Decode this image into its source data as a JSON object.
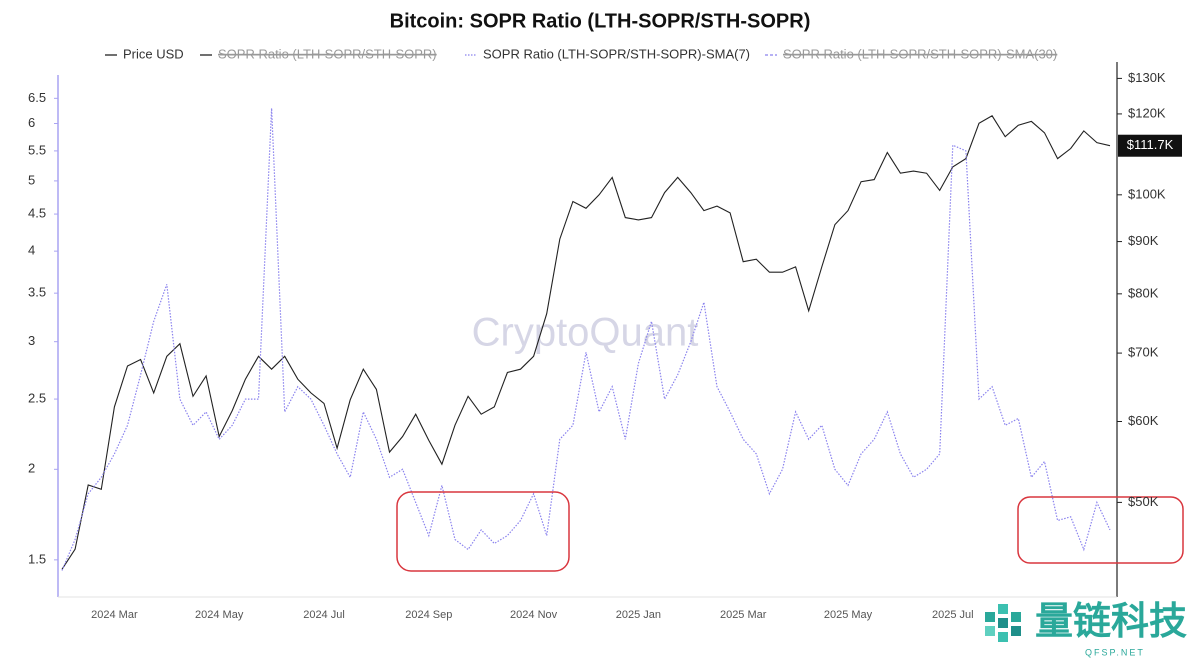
{
  "chart_data": {
    "type": "line",
    "title": "Bitcoin: SOPR Ratio (LTH-SOPR/STH-SOPR)",
    "watermark": "CryptoQuant",
    "last_value_label": "$111.7K",
    "logo_text": "量链科技",
    "logo_subtext": "QFSP.NET",
    "log_scale_y": true,
    "log_scale_y2": true,
    "legend": "top",
    "categories": [
      null,
      null,
      null,
      null,
      "2024 Mar",
      null,
      null,
      null,
      null,
      null,
      null,
      null,
      "2024 May",
      null,
      null,
      null,
      null,
      null,
      null,
      null,
      "2024 Jul",
      null,
      null,
      null,
      null,
      null,
      null,
      null,
      "2024 Sep",
      null,
      null,
      null,
      null,
      null,
      null,
      null,
      "2024 Nov",
      null,
      null,
      null,
      null,
      null,
      null,
      null,
      "2025 Jan",
      null,
      null,
      null,
      null,
      null,
      null,
      null,
      "2025 Mar",
      null,
      null,
      null,
      null,
      null,
      null,
      null,
      "2025 May",
      null,
      null,
      null,
      null,
      null,
      null,
      null,
      "2025 Jul",
      null,
      null,
      null,
      null,
      null,
      null,
      null,
      null,
      null,
      null,
      null,
      null
    ],
    "series": [
      {
        "name": "Price USD",
        "color": "#222222",
        "axis": "y2",
        "style": "solid",
        "values": [
          43000,
          45000,
          52000,
          51500,
          62000,
          68000,
          69000,
          64000,
          69500,
          71500,
          63500,
          66500,
          58000,
          61500,
          66000,
          69500,
          67500,
          69500,
          66000,
          64000,
          62500,
          56500,
          63000,
          67500,
          64500,
          56000,
          58000,
          61000,
          57500,
          54500,
          59500,
          63500,
          61000,
          62000,
          67000,
          67500,
          69500,
          76500,
          90500,
          98500,
          97000,
          100000,
          104000,
          95000,
          94500,
          95000,
          100500,
          104000,
          100500,
          96500,
          97500,
          96000,
          86000,
          86500,
          84000,
          84000,
          85000,
          77000,
          85000,
          93500,
          96500,
          103000,
          103500,
          110000,
          105000,
          105500,
          105000,
          101000,
          106500,
          108500,
          117500,
          119500,
          114000,
          117000,
          118000,
          115000,
          108500,
          111000,
          115500,
          112500,
          111700
        ]
      },
      {
        "name": "SOPR Ratio (LTH-SOPR/STH-SOPR)",
        "color": "#222222",
        "style": "solid",
        "hidden": true
      },
      {
        "name": "SOPR Ratio (LTH-SOPR/STH-SOPR)-SMA(7)",
        "color": "#8a82ee",
        "style": "dotted",
        "values": [
          1.45,
          1.6,
          1.85,
          1.95,
          2.1,
          2.3,
          2.7,
          3.2,
          3.6,
          2.5,
          2.3,
          2.4,
          2.2,
          2.3,
          2.5,
          2.5,
          6.3,
          2.4,
          2.6,
          2.5,
          2.3,
          2.1,
          1.95,
          2.4,
          2.2,
          1.95,
          2.0,
          1.8,
          1.62,
          1.9,
          1.6,
          1.55,
          1.65,
          1.58,
          1.62,
          1.7,
          1.85,
          1.62,
          2.2,
          2.3,
          2.9,
          2.4,
          2.6,
          2.2,
          2.8,
          3.2,
          2.5,
          2.7,
          3.0,
          3.4,
          2.6,
          2.4,
          2.2,
          2.1,
          1.85,
          2.0,
          2.4,
          2.2,
          2.3,
          2.0,
          1.9,
          2.1,
          2.2,
          2.4,
          2.1,
          1.95,
          2.0,
          2.1,
          5.6,
          5.5,
          2.5,
          2.6,
          2.3,
          2.35,
          1.95,
          2.05,
          1.7,
          1.72,
          1.55,
          1.8,
          1.65
        ]
      },
      {
        "name": "SOPR Ratio (LTH-SOPR/STH-SOPR)-SMA(30)",
        "color": "#8a82ee",
        "style": "dashed",
        "hidden": true
      }
    ],
    "ylim": [
      1.333,
      7.0
    ],
    "yticks": [
      1.5,
      2,
      2.5,
      3,
      3.5,
      4,
      4.5,
      5,
      5.5,
      6,
      6.5
    ],
    "y2lim": [
      40400,
      131000
    ],
    "y2ticks": [
      {
        "value": 50000,
        "label": "$50K"
      },
      {
        "value": 60000,
        "label": "$60K"
      },
      {
        "value": 70000,
        "label": "$70K"
      },
      {
        "value": 80000,
        "label": "$80K"
      },
      {
        "value": 90000,
        "label": "$90K"
      },
      {
        "value": 100000,
        "label": "$100K"
      },
      {
        "value": 120000,
        "label": "$120K"
      },
      {
        "value": 130000,
        "label": "$130K"
      }
    ],
    "grid": false
  }
}
